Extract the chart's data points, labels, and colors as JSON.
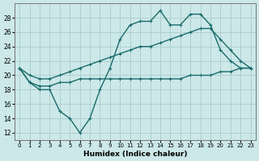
{
  "xlabel": "Humidex (Indice chaleur)",
  "bg_color": "#cce8e8",
  "grid_color": "#aacccc",
  "line_color": "#1a6b6b",
  "x_main": [
    0,
    1,
    2,
    3,
    4,
    5,
    6,
    7,
    8,
    9,
    10,
    11,
    12,
    13,
    14,
    15,
    16,
    17,
    18,
    19,
    20,
    21,
    22,
    23
  ],
  "y_main": [
    21,
    19,
    18,
    18,
    15,
    14,
    12,
    14,
    18,
    21,
    25,
    27,
    27.5,
    27.5,
    29,
    27,
    27,
    28.5,
    28.5,
    27,
    23.5,
    22,
    21,
    21
  ],
  "x_upper": [
    0,
    1,
    2,
    3,
    4,
    5,
    6,
    7,
    8,
    9,
    10,
    11,
    12,
    13,
    14,
    15,
    16,
    17,
    18,
    19,
    20,
    21,
    22,
    23
  ],
  "y_upper": [
    21,
    20,
    19.5,
    19.5,
    20,
    20.5,
    21,
    21.5,
    22,
    22.5,
    23,
    23.5,
    24,
    24,
    24.5,
    25,
    25.5,
    26,
    26.5,
    26.5,
    25,
    23.5,
    22,
    21
  ],
  "x_lower": [
    0,
    1,
    2,
    3,
    4,
    5,
    6,
    7,
    8,
    9,
    10,
    11,
    12,
    13,
    14,
    15,
    16,
    17,
    18,
    19,
    20,
    21,
    22,
    23
  ],
  "y_lower": [
    21,
    19,
    18.5,
    18.5,
    19,
    19,
    19.5,
    19.5,
    19.5,
    19.5,
    19.5,
    19.5,
    19.5,
    19.5,
    19.5,
    19.5,
    19.5,
    20,
    20,
    20,
    20.5,
    20.5,
    21,
    21
  ],
  "ylim": [
    11,
    30
  ],
  "xlim": [
    -0.5,
    23.5
  ],
  "yticks": [
    12,
    14,
    16,
    18,
    20,
    22,
    24,
    26,
    28
  ],
  "xticks": [
    0,
    1,
    2,
    3,
    4,
    5,
    6,
    7,
    8,
    9,
    10,
    11,
    12,
    13,
    14,
    15,
    16,
    17,
    18,
    19,
    20,
    21,
    22,
    23
  ],
  "xlabels": [
    "0",
    "1",
    "2",
    "3",
    "4",
    "5",
    "6",
    "7",
    "8",
    "9",
    "10",
    "11",
    "12",
    "13",
    "14",
    "15",
    "16",
    "17",
    "18",
    "19",
    "20",
    "21",
    "22",
    "23"
  ]
}
